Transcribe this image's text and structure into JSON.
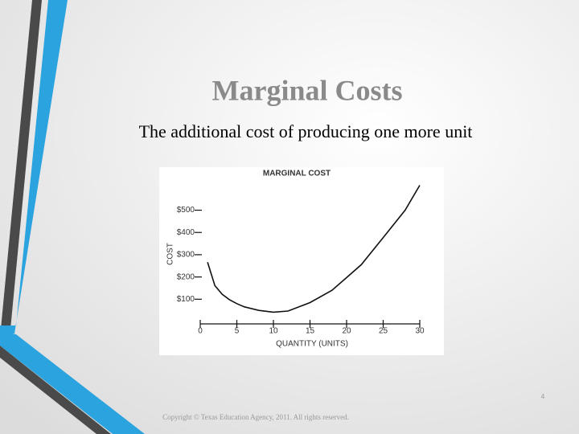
{
  "slide": {
    "title": "Marginal Costs",
    "subtitle": "The additional cost of producing one more unit",
    "page_number": "4",
    "footer": "Copyright © Texas Education Agency, 2011. All rights reserved."
  },
  "chart_data": {
    "type": "line",
    "title": "MARGINAL COST",
    "x_label": "QUANTITY (UNITS)",
    "y_label": "COST",
    "x": [
      1,
      2,
      3,
      4,
      5,
      6,
      8,
      10,
      12,
      15,
      18,
      20,
      22,
      25,
      28,
      30
    ],
    "values": [
      266,
      161,
      122,
      98,
      80,
      66,
      50,
      42,
      47,
      85,
      140,
      197,
      255,
      377,
      500,
      612
    ],
    "color": "#111111",
    "xlim": [
      0,
      30
    ],
    "xticks": [
      0,
      5,
      10,
      15,
      20,
      25,
      30
    ],
    "ylim": [
      0,
      650
    ],
    "yticks": [
      {
        "value": 100,
        "label": "$100"
      },
      {
        "value": 200,
        "label": "$200"
      },
      {
        "value": 300,
        "label": "$300"
      },
      {
        "value": 400,
        "label": "$400"
      },
      {
        "value": 500,
        "label": "$500"
      }
    ]
  }
}
